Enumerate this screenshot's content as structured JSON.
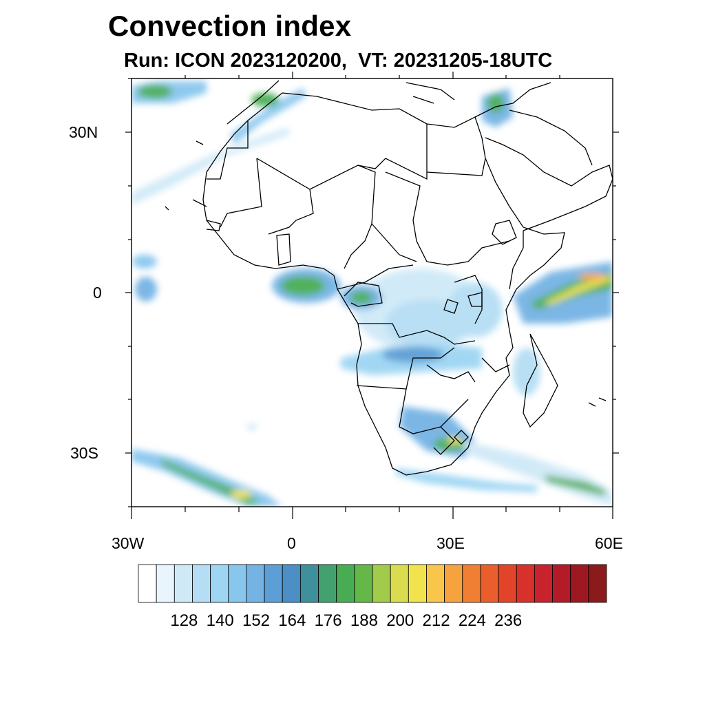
{
  "title": "Convection index",
  "subtitle": "Run: ICON 2023120200,  VT: 20231205-18UTC",
  "axes": {
    "y_ticks": [
      "30N",
      "0",
      "30S"
    ],
    "x_ticks": [
      "30W",
      "0",
      "30E",
      "60E"
    ]
  },
  "colorbar": {
    "labels": [
      "128",
      "140",
      "152",
      "164",
      "176",
      "188",
      "200",
      "212",
      "224",
      "236"
    ],
    "colors": [
      "#ffffff",
      "#e8f5fc",
      "#cfe9f7",
      "#b5def4",
      "#9dd5f3",
      "#88c6ee",
      "#74b3e4",
      "#5b9fd6",
      "#4b8fc4",
      "#3f8f9c",
      "#43a06f",
      "#48ad52",
      "#63b847",
      "#a2cb4c",
      "#d9dc4f",
      "#f0e34e",
      "#f8c64a",
      "#f6a23f",
      "#f07f33",
      "#ea5e2c",
      "#e24429",
      "#d8302b",
      "#c8232c",
      "#b31b28",
      "#9e1821",
      "#8a1a1c"
    ]
  },
  "legend": {}
}
